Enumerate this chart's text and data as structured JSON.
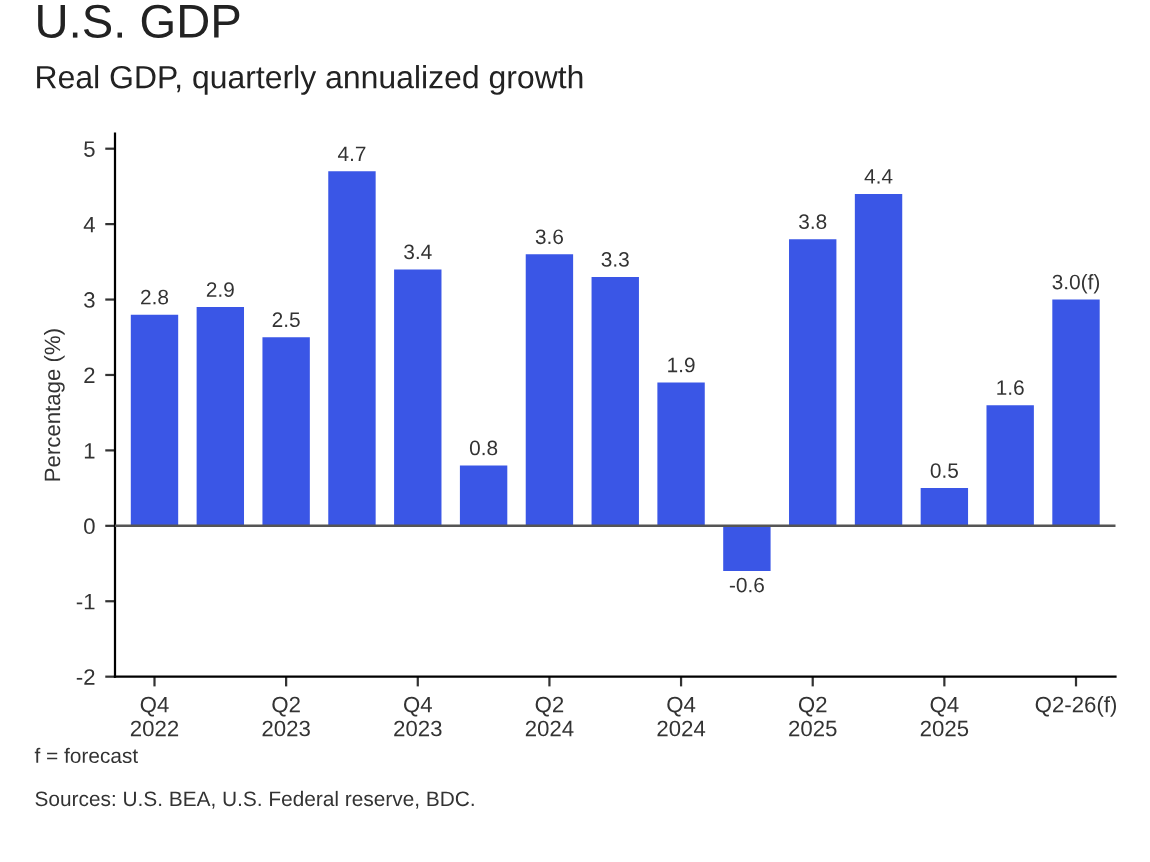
{
  "chart_data": {
    "type": "bar",
    "title": "U.S. GDP",
    "subtitle": "Real GDP, quarterly annualized growth",
    "ylabel": "Percentage (%)",
    "categories": [
      "Q4\n2022",
      null,
      "Q2\n2023",
      null,
      "Q4\n2023",
      null,
      "Q2\n2024",
      null,
      "Q4\n2024",
      null,
      "Q2\n2025",
      null,
      "Q4\n2025",
      null,
      "Q2-26(f)"
    ],
    "values": [
      2.8,
      2.9,
      2.5,
      4.7,
      3.4,
      0.8,
      3.6,
      3.3,
      1.9,
      -0.6,
      3.8,
      4.4,
      0.5,
      1.6,
      3.0
    ],
    "value_labels": [
      "2.8",
      "2.9",
      "2.5",
      "4.7",
      "3.4",
      "0.8",
      "3.6",
      "3.3",
      "1.9",
      "-0.6",
      "3.8",
      "4.4",
      "0.5",
      "1.6",
      "3.0(f)"
    ],
    "color": "#3a56e6",
    "ylim": [
      -2,
      5.2
    ],
    "yticks": [
      -2,
      -1,
      0,
      1,
      2,
      3,
      4,
      5
    ],
    "ref_lines": [
      {
        "axis": "y",
        "value": 0,
        "color": "#555555"
      }
    ],
    "grid": false,
    "annotations": [
      "f = forecast",
      "Sources: U.S. BEA, U.S. Federal reserve, BDC."
    ]
  }
}
